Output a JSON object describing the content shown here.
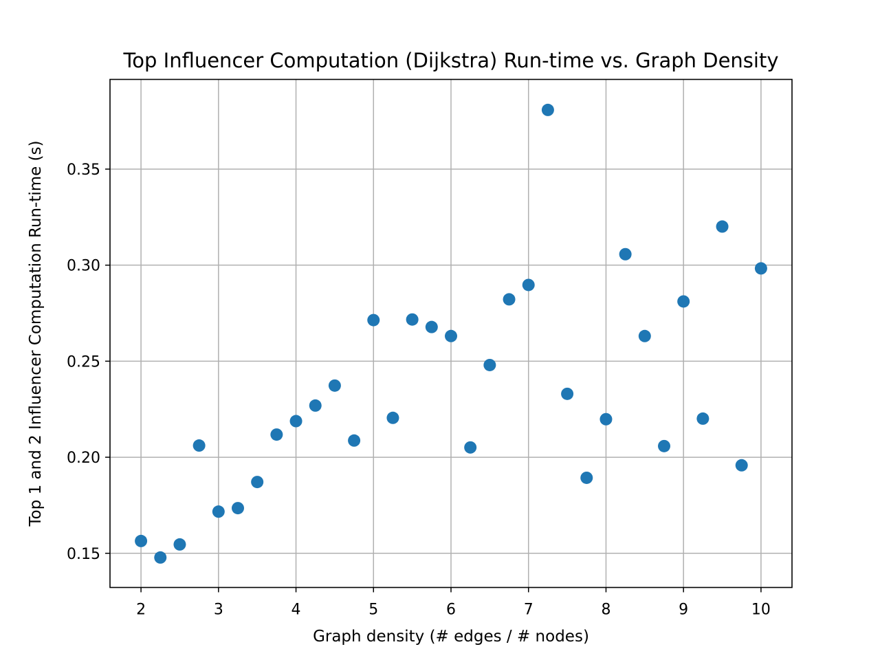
{
  "chart_data": {
    "type": "scatter",
    "title": "Top Influencer Computation (Dijkstra) Run-time vs. Graph Density",
    "xlabel": "Graph density (# edges / # nodes)",
    "ylabel": "Top 1 and 2 Influencer Computation Run-time (s)",
    "xlim": [
      1.6,
      10.4
    ],
    "ylim": [
      0.1322,
      0.3967
    ],
    "xticks": [
      2,
      3,
      4,
      5,
      6,
      7,
      8,
      9,
      10
    ],
    "xtick_labels": [
      "2",
      "3",
      "4",
      "5",
      "6",
      "7",
      "8",
      "9",
      "10"
    ],
    "yticks": [
      0.15,
      0.2,
      0.25,
      0.3,
      0.35
    ],
    "ytick_labels": [
      "0.15",
      "0.20",
      "0.25",
      "0.30",
      "0.35"
    ],
    "grid": true,
    "marker_color": "#1f77b4",
    "series": [
      {
        "x": [
          2.0,
          2.25,
          2.5,
          2.75,
          3.0,
          3.25,
          3.5,
          3.75,
          4.0,
          4.25,
          4.5,
          4.75,
          5.0,
          5.25,
          5.5,
          5.75,
          6.0,
          6.25,
          6.5,
          6.75,
          7.0,
          7.25,
          7.5,
          7.75,
          8.0,
          8.25,
          8.5,
          8.75,
          9.0,
          9.25,
          9.5,
          9.75,
          10.0
        ],
        "y": [
          0.1564,
          0.1478,
          0.1546,
          0.2061,
          0.1717,
          0.1735,
          0.1871,
          0.2118,
          0.2188,
          0.2269,
          0.2373,
          0.2087,
          0.2714,
          0.2205,
          0.2717,
          0.2678,
          0.2631,
          0.2051,
          0.248,
          0.2822,
          0.2897,
          0.3808,
          0.233,
          0.1893,
          0.2198,
          0.3057,
          0.2631,
          0.2058,
          0.2811,
          0.2201,
          0.3201,
          0.1958,
          0.2983
        ]
      }
    ]
  }
}
